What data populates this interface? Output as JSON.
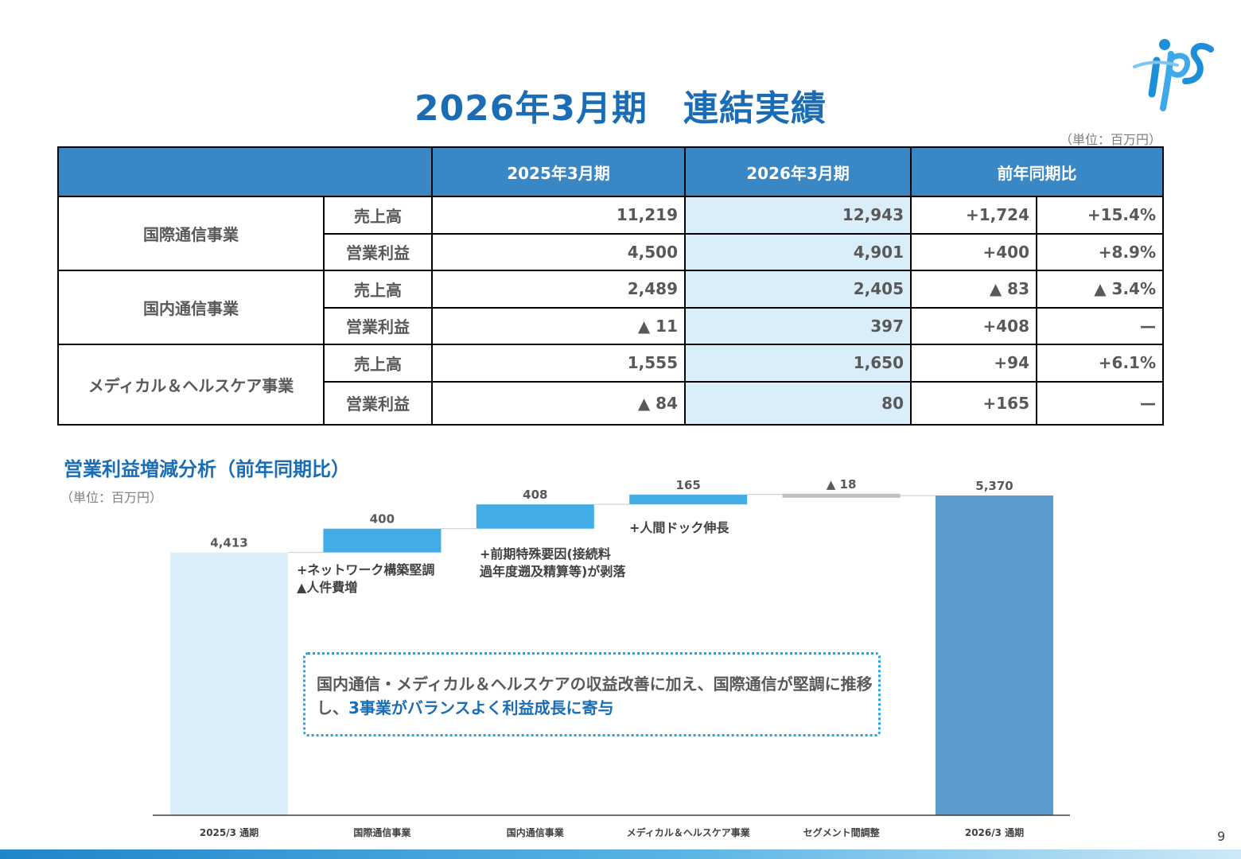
{
  "title": "2026年3月期　連結実績",
  "unit_label": "（単位：百万円）",
  "colors": {
    "brand_blue": "#1a6db5",
    "header_blue": "#3a87c6",
    "highlight_cell": "#daeefa",
    "bar_light": "#daeefa",
    "bar_increase": "#41ace6",
    "bar_decrease": "#bfbfbf",
    "bar_total": "#5a9ccd"
  },
  "table": {
    "headers": [
      "",
      "2025年3月期",
      "2026年3月期",
      "前年同期比"
    ],
    "segments": [
      {
        "name": "国際通信事業",
        "rows": [
          {
            "metric": "売上高",
            "fy2025": "11,219",
            "fy2026": "12,943",
            "diff": "+1,724",
            "pct": "+15.4%"
          },
          {
            "metric": "営業利益",
            "fy2025": "4,500",
            "fy2026": "4,901",
            "diff": "+400",
            "pct": "+8.9%"
          }
        ]
      },
      {
        "name": "国内通信事業",
        "rows": [
          {
            "metric": "売上高",
            "fy2025": "2,489",
            "fy2026": "2,405",
            "diff": "▲ 83",
            "pct": "▲ 3.4%"
          },
          {
            "metric": "営業利益",
            "fy2025": "▲ 11",
            "fy2026": "397",
            "diff": "+408",
            "pct": "—"
          }
        ]
      },
      {
        "name": "メディカル＆ヘルスケア事業",
        "rows": [
          {
            "metric": "売上高",
            "fy2025": "1,555",
            "fy2026": "1,650",
            "diff": "+94",
            "pct": "+6.1%"
          },
          {
            "metric": "営業利益",
            "fy2025": "▲ 84",
            "fy2026": "80",
            "diff": "+165",
            "pct": "—"
          }
        ]
      }
    ]
  },
  "analysis": {
    "title": "営業利益増減分析（前年同期比）",
    "unit_label": "（単位：百万円）",
    "annotations": {
      "intl": [
        "+ネットワーク構築堅調",
        "▲人件費増"
      ],
      "domestic": [
        "+前期特殊要因(接続料",
        "過年度遡及精算等)が剥落"
      ],
      "medical": [
        "+人間ドック伸長"
      ]
    },
    "callout": {
      "text_plain": "国内通信・メディカル＆ヘルスケアの収益改善に加え、国際通信が堅調に推移し、",
      "text_emphasis": "3事業がバランスよく利益成長に寄与"
    }
  },
  "chart_data": {
    "type": "waterfall",
    "categories": [
      "2025/3 通期",
      "国際通信事業",
      "国内通信事業",
      "メディカル＆ヘルスケア事業",
      "セグメント間調整",
      "2026/3 通期"
    ],
    "values": [
      4413,
      400,
      408,
      165,
      -18,
      5370
    ],
    "value_labels": [
      "4,413",
      "400",
      "408",
      "165",
      "▲ 18",
      "5,370"
    ],
    "kinds": [
      "total",
      "increase",
      "increase",
      "increase",
      "decrease",
      "total"
    ]
  },
  "page_number": "9"
}
